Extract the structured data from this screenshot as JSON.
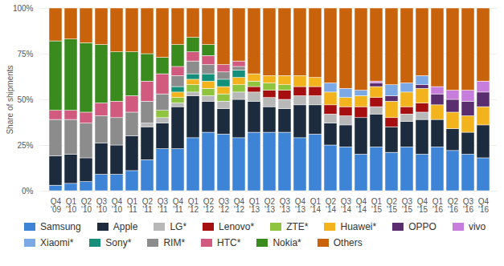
{
  "chart_data": {
    "type": "bar",
    "stacked": true,
    "grid": true,
    "legend": "bottom",
    "ylabel": "Share of shipments",
    "ylim": [
      0,
      100
    ],
    "yticks": [
      {
        "value": 0,
        "label": "0%"
      },
      {
        "value": 25,
        "label": "25%"
      },
      {
        "value": 50,
        "label": "50%"
      },
      {
        "value": 75,
        "label": "75%"
      },
      {
        "value": 100,
        "label": "100%"
      }
    ],
    "categories": [
      "Q4 '09",
      "Q1 '10",
      "Q2 '10",
      "Q3 '10",
      "Q4 '10",
      "Q1 '11",
      "Q2 '11",
      "Q3 '11",
      "Q4 '11",
      "Q1 '12",
      "Q2 '12",
      "Q3 '12",
      "Q4 '12",
      "Q1 '13",
      "Q2 '13",
      "Q3 '13",
      "Q4 '13",
      "Q1 '14",
      "Q2 '14",
      "Q3 '14",
      "Q4 '14",
      "Q1 '15",
      "Q2 '15",
      "Q3 '15",
      "Q4 '15",
      "Q1 '16",
      "Q2 '16",
      "Q3 '16",
      "Q4 '16"
    ],
    "series": [
      {
        "name": "Samsung",
        "color": "#3d83d6",
        "values": [
          3,
          4,
          5,
          9,
          9,
          11,
          17,
          23,
          23,
          29,
          32,
          31,
          29,
          32,
          32,
          32,
          29,
          31,
          25,
          24,
          20,
          24,
          21,
          24,
          20,
          24,
          22,
          20,
          18
        ]
      },
      {
        "name": "Apple",
        "color": "#1c2b3d",
        "values": [
          16,
          16,
          13,
          17,
          16,
          19,
          18,
          14,
          23,
          23,
          17,
          14,
          21,
          17,
          14,
          13,
          18,
          16,
          12,
          12,
          20,
          18,
          14,
          14,
          19,
          15,
          12,
          12,
          18
        ]
      },
      {
        "name": "LG*",
        "color": "#b8b8b8",
        "values": [
          0,
          0,
          0,
          0,
          0,
          0,
          2,
          3,
          2,
          2,
          3,
          4,
          4,
          5,
          5,
          5,
          5,
          5,
          5,
          5,
          0,
          4,
          0,
          4,
          4,
          0,
          0,
          0,
          0
        ]
      },
      {
        "name": "Lenovo*",
        "color": "#a50f10",
        "values": [
          0,
          0,
          0,
          0,
          0,
          0,
          0,
          0,
          0,
          0,
          0,
          0,
          0,
          3,
          4,
          5,
          5,
          5,
          5,
          5,
          6,
          5,
          5,
          4,
          5,
          0,
          0,
          0,
          0
        ]
      },
      {
        "name": "ZTE*",
        "color": "#8fc43f",
        "values": [
          0,
          0,
          0,
          0,
          0,
          0,
          0,
          4,
          3,
          4,
          4,
          4,
          4,
          3,
          4,
          3,
          0,
          0,
          0,
          0,
          0,
          0,
          0,
          0,
          0,
          0,
          0,
          0,
          0
        ]
      },
      {
        "name": "Huawei*",
        "color": "#f2b31c",
        "values": [
          0,
          0,
          0,
          0,
          0,
          0,
          0,
          0,
          3,
          3,
          4,
          4,
          4,
          4,
          4,
          5,
          6,
          5,
          7,
          5,
          6,
          6,
          9,
          8,
          8,
          8,
          9,
          9,
          10
        ]
      },
      {
        "name": "OPPO",
        "color": "#5a2d6e",
        "values": [
          0,
          0,
          0,
          0,
          0,
          0,
          0,
          0,
          0,
          0,
          0,
          0,
          0,
          0,
          0,
          0,
          0,
          0,
          0,
          0,
          0,
          2,
          3,
          0,
          2,
          6,
          7,
          8,
          8
        ]
      },
      {
        "name": "vivo",
        "color": "#c77ddb",
        "values": [
          0,
          0,
          0,
          0,
          0,
          0,
          0,
          0,
          0,
          0,
          0,
          0,
          0,
          0,
          0,
          0,
          0,
          0,
          0,
          0,
          0,
          1,
          0,
          0,
          0,
          4,
          5,
          6,
          6
        ]
      },
      {
        "name": "Xiaomi*",
        "color": "#7ba9e6",
        "values": [
          0,
          0,
          0,
          0,
          0,
          0,
          0,
          0,
          0,
          0,
          0,
          0,
          0,
          0,
          0,
          0,
          0,
          0,
          5,
          5,
          3,
          0,
          6,
          5,
          5,
          0,
          0,
          0,
          0
        ]
      },
      {
        "name": "Sony*",
        "color": "#138f7a",
        "values": [
          0,
          0,
          0,
          0,
          0,
          0,
          0,
          0,
          3,
          3,
          4,
          4,
          4,
          0,
          0,
          0,
          0,
          0,
          0,
          0,
          0,
          0,
          0,
          0,
          0,
          0,
          0,
          0,
          0
        ]
      },
      {
        "name": "RIM*",
        "color": "#8c8c8c",
        "values": [
          20,
          19,
          19,
          15,
          15,
          13,
          12,
          9,
          6,
          7,
          5,
          4,
          2,
          0,
          0,
          0,
          0,
          0,
          0,
          0,
          0,
          0,
          0,
          0,
          0,
          0,
          0,
          0,
          0
        ]
      },
      {
        "name": "HTC*",
        "color": "#d15b7f",
        "values": [
          5,
          5,
          6,
          7,
          9,
          9,
          11,
          11,
          5,
          5,
          5,
          4,
          3,
          0,
          0,
          0,
          0,
          0,
          0,
          0,
          0,
          0,
          0,
          0,
          0,
          0,
          0,
          0,
          0
        ]
      },
      {
        "name": "Nokia*",
        "color": "#3a8b1d",
        "values": [
          38,
          39,
          38,
          32,
          27,
          24,
          15,
          9,
          12,
          8,
          6,
          0,
          0,
          0,
          0,
          0,
          0,
          0,
          0,
          0,
          0,
          0,
          0,
          0,
          0,
          0,
          0,
          0,
          0
        ]
      },
      {
        "name": "Others",
        "color": "#c8620b",
        "values": [
          18,
          17,
          19,
          20,
          24,
          24,
          25,
          27,
          20,
          16,
          20,
          31,
          29,
          36,
          37,
          37,
          37,
          38,
          41,
          44,
          45,
          40,
          42,
          41,
          37,
          43,
          45,
          45,
          40
        ]
      }
    ]
  }
}
